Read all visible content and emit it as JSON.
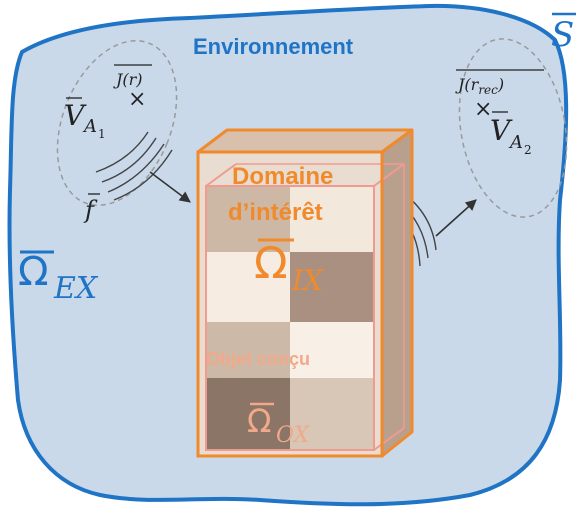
{
  "colors": {
    "environment_fill": "#c9d9ea",
    "environment_stroke": "#1f74c6",
    "label_blue": "#1f74c6",
    "box_orange": "#f08a2c",
    "object_label": "#f2a98a",
    "object_stroke": "#f29a8f",
    "dark_text": "#222222",
    "dashed_gray": "#9a9a9a"
  },
  "labels": {
    "surface": {
      "letter": "S"
    },
    "environment": "Environnement",
    "omega_ex": {
      "symbol": "Ω",
      "subscript": "EX"
    },
    "domain_line1": "Domaine",
    "domain_line2": "d’intérêt",
    "omega_ix": {
      "symbol": "Ω",
      "subscript": "IX"
    },
    "object": "Objet conçu",
    "omega_ox": {
      "symbol": "Ω",
      "subscript": "OX"
    },
    "source_left": {
      "current": "J(r)",
      "marker": "×",
      "voltage": "V",
      "sub": "A",
      "subsub": "1"
    },
    "source_right": {
      "current": "J(r",
      "current_sub": "rec",
      "current_close": ")",
      "marker": "×",
      "voltage": "V",
      "sub": "A",
      "subsub": "2"
    },
    "field": "f"
  },
  "icons": [
    "arrow-icon",
    "wave-icon",
    "cross-marker-icon"
  ]
}
